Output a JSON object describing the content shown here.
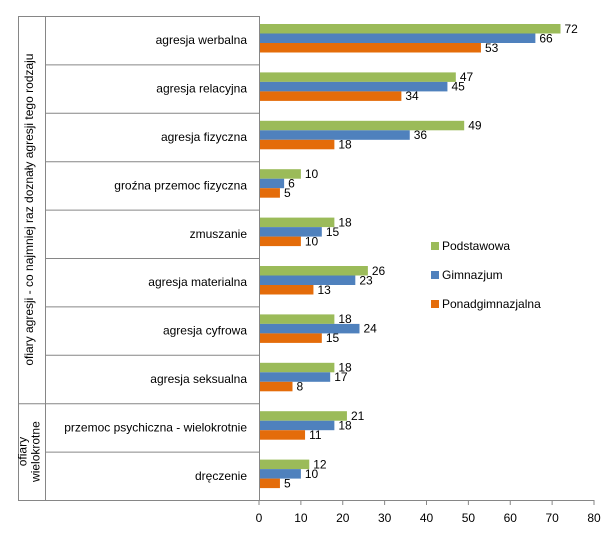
{
  "chart_data": {
    "type": "bar",
    "orientation": "horizontal",
    "categories": [
      "agresja werbalna",
      "agresja relacyjna",
      "agresja fizyczna",
      "groźna przemoc fizyczna",
      "zmuszanie",
      "agresja materialna",
      "agresja cyfrowa",
      "agresja seksualna",
      "przemoc psychiczna - wielokrotnie",
      "dręczenie"
    ],
    "series": [
      {
        "name": "Podstawowa",
        "color": "#9bbb59",
        "values": [
          72,
          47,
          49,
          10,
          18,
          26,
          18,
          18,
          21,
          12
        ]
      },
      {
        "name": "Gimnazjum",
        "color": "#4f81bd",
        "values": [
          66,
          45,
          36,
          6,
          15,
          23,
          24,
          17,
          18,
          10
        ]
      },
      {
        "name": "Ponadgimnazjalna",
        "color": "#e46c0a",
        "values": [
          53,
          34,
          18,
          5,
          10,
          13,
          15,
          8,
          11,
          5
        ]
      }
    ],
    "xlim": [
      0,
      80
    ],
    "xticks": [
      0,
      10,
      20,
      30,
      40,
      50,
      60,
      70,
      80
    ],
    "groups": [
      {
        "label_lines": [
          "ofiary agresji - co najmniej raz doznały agresji tego rodzaju"
        ],
        "category_count": 8
      },
      {
        "label_lines": [
          "ofiary",
          "wielokrotne"
        ],
        "category_count": 2
      }
    ],
    "legend_placement": "right",
    "grid": false
  }
}
